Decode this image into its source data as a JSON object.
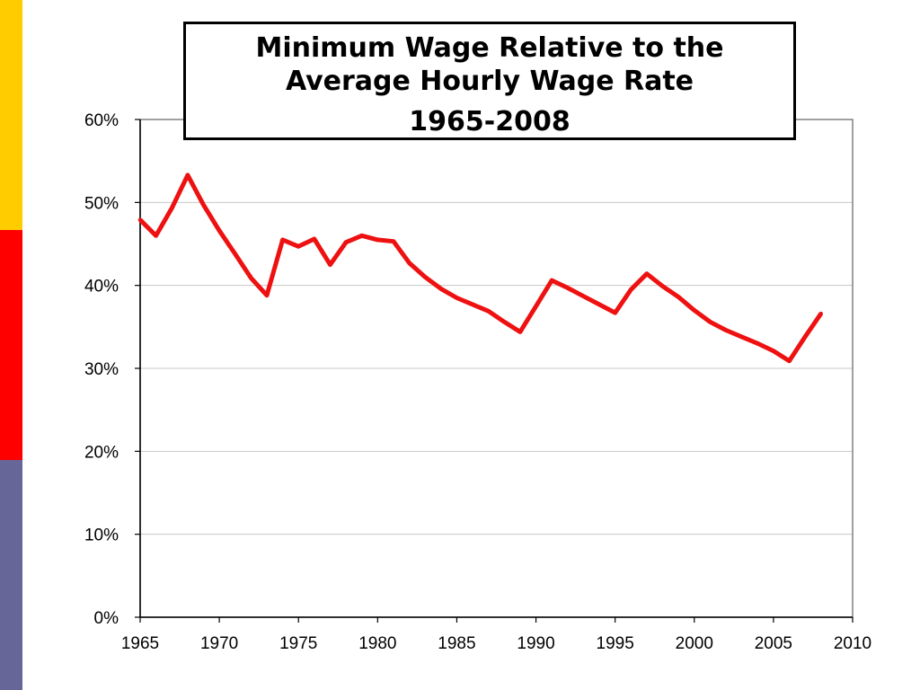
{
  "slide": {
    "side_bar_colors": [
      "#FFCC00",
      "#FF0000",
      "#666699"
    ]
  },
  "title": {
    "line1": "Minimum Wage Relative to the",
    "line2": "Average Hourly Wage Rate",
    "line3": "1965-2008"
  },
  "chart_data": {
    "type": "line",
    "title": "Minimum Wage Relative to the Average Hourly Wage Rate 1965-2008",
    "xlabel": "",
    "ylabel": "",
    "xlim": [
      1965,
      2010
    ],
    "ylim": [
      0,
      60
    ],
    "x_ticks": [
      1965,
      1970,
      1975,
      1980,
      1985,
      1990,
      1995,
      2000,
      2005,
      2010
    ],
    "x_tick_labels": [
      "1965",
      "1970",
      "1975",
      "1980",
      "1985",
      "1990",
      "1995",
      "2000",
      "2005",
      "2010"
    ],
    "y_ticks": [
      0,
      10,
      20,
      30,
      40,
      50,
      60
    ],
    "y_tick_labels": [
      "0%",
      "10%",
      "20%",
      "30%",
      "40%",
      "50%",
      "60%"
    ],
    "grid": true,
    "line_color": "#EE1111",
    "series": [
      {
        "x": [
          1965,
          1966,
          1967,
          1968,
          1969,
          1970,
          1971,
          1972,
          1973,
          1974,
          1975,
          1976,
          1977,
          1978,
          1979,
          1980,
          1981,
          1982,
          1983,
          1984,
          1985,
          1986,
          1987,
          1988,
          1989,
          1990,
          1991,
          1992,
          1993,
          1994,
          1995,
          1996,
          1997,
          1998,
          1999,
          2000,
          2001,
          2002,
          2003,
          2004,
          2005,
          2006,
          2007,
          2008
        ],
        "values": [
          47.9,
          46.0,
          49.3,
          53.3,
          49.7,
          46.6,
          43.8,
          40.9,
          38.8,
          45.5,
          44.7,
          45.6,
          42.5,
          45.2,
          46.0,
          45.5,
          45.3,
          42.7,
          41.0,
          39.6,
          38.5,
          37.7,
          36.9,
          35.6,
          34.4,
          37.5,
          40.6,
          39.7,
          38.7,
          37.7,
          36.7,
          39.5,
          41.4,
          39.9,
          38.6,
          37.0,
          35.6,
          34.6,
          33.8,
          33.0,
          32.1,
          30.9,
          33.8,
          36.6
        ]
      }
    ]
  }
}
